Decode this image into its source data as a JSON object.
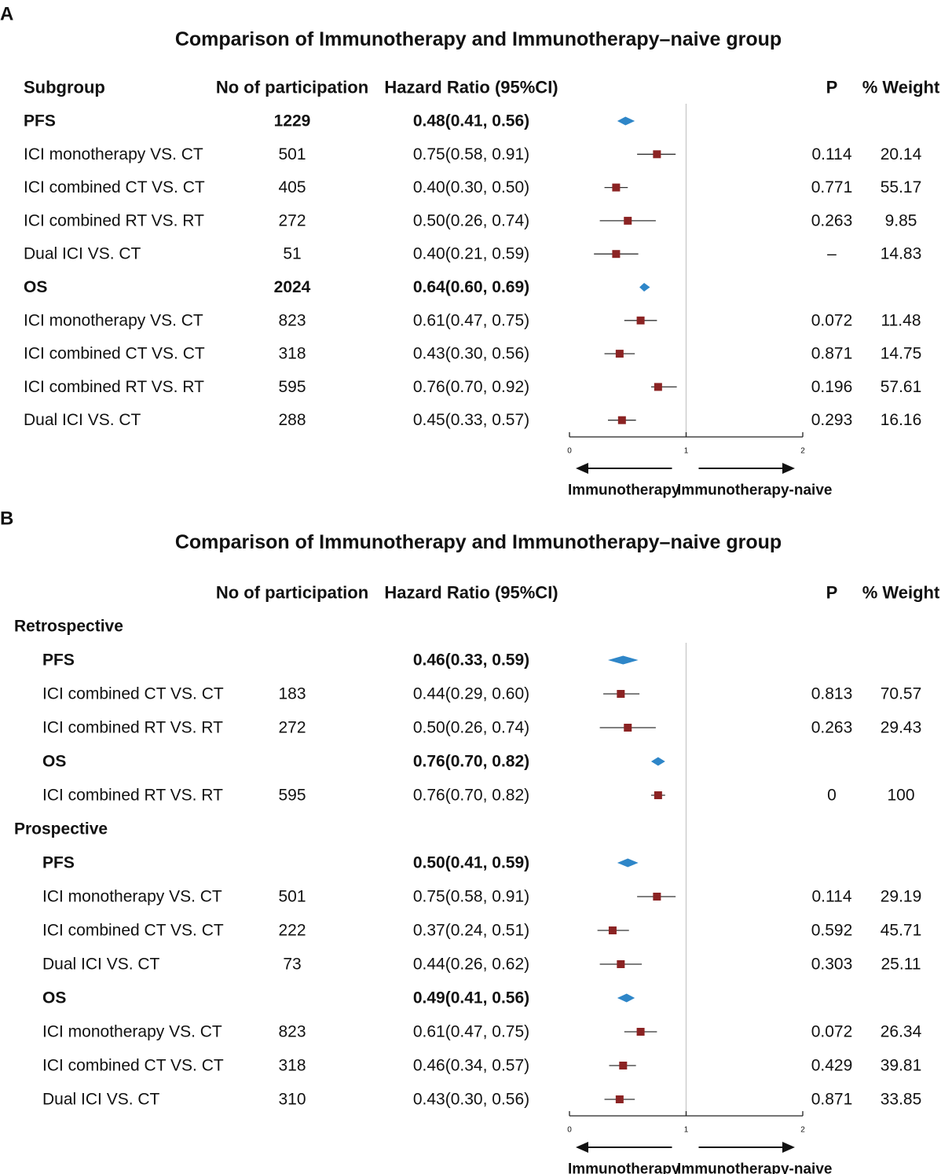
{
  "chart_data": [
    {
      "type": "forest",
      "panel_label": "A",
      "title": "Comparison of Immunotherapy and Immunotherapy–naive group",
      "columns": {
        "subgroup": "Subgroup",
        "n": "No of participation",
        "hr": "Hazard Ratio (95%CI)",
        "p": "P",
        "weight": "% Weight"
      },
      "xaxis": {
        "range": [
          0,
          2
        ],
        "ticks": [
          "0",
          "1",
          "2"
        ],
        "reference": 1
      },
      "direction_labels": {
        "left": "Immunotherapy",
        "right": "Immunotherapy-naive"
      },
      "rows": [
        {
          "kind": "summary",
          "indent": 0,
          "label": "PFS",
          "n": "1229",
          "hr_text": "0.48(0.41, 0.56)",
          "est": 0.48,
          "lo": 0.41,
          "hi": 0.56,
          "p": "",
          "weight": ""
        },
        {
          "kind": "study",
          "indent": 0,
          "label": "ICI monotherapy VS. CT",
          "n": "501",
          "hr_text": "0.75(0.58, 0.91)",
          "est": 0.75,
          "lo": 0.58,
          "hi": 0.91,
          "p": "0.114",
          "weight": "20.14"
        },
        {
          "kind": "study",
          "indent": 0,
          "label": "ICI combined CT VS. CT",
          "n": "405",
          "hr_text": "0.40(0.30, 0.50)",
          "est": 0.4,
          "lo": 0.3,
          "hi": 0.5,
          "p": "0.771",
          "weight": "55.17"
        },
        {
          "kind": "study",
          "indent": 0,
          "label": "ICI combined RT VS. RT",
          "n": "272",
          "hr_text": "0.50(0.26, 0.74)",
          "est": 0.5,
          "lo": 0.26,
          "hi": 0.74,
          "p": "0.263",
          "weight": "9.85"
        },
        {
          "kind": "study",
          "indent": 0,
          "label": "Dual ICI VS. CT",
          "n": "51",
          "hr_text": "0.40(0.21, 0.59)",
          "est": 0.4,
          "lo": 0.21,
          "hi": 0.59,
          "p": "–",
          "weight": "14.83"
        },
        {
          "kind": "summary",
          "indent": 0,
          "label": "OS",
          "n": "2024",
          "hr_text": "0.64(0.60, 0.69)",
          "est": 0.64,
          "lo": 0.6,
          "hi": 0.69,
          "p": "",
          "weight": ""
        },
        {
          "kind": "study",
          "indent": 0,
          "label": "ICI monotherapy VS. CT",
          "n": "823",
          "hr_text": "0.61(0.47, 0.75)",
          "est": 0.61,
          "lo": 0.47,
          "hi": 0.75,
          "p": "0.072",
          "weight": "11.48"
        },
        {
          "kind": "study",
          "indent": 0,
          "label": "ICI combined CT VS. CT",
          "n": "318",
          "hr_text": "0.43(0.30, 0.56)",
          "est": 0.43,
          "lo": 0.3,
          "hi": 0.56,
          "p": "0.871",
          "weight": "14.75"
        },
        {
          "kind": "study",
          "indent": 0,
          "label": "ICI combined RT VS. RT",
          "n": "595",
          "hr_text": "0.76(0.70, 0.92)",
          "est": 0.76,
          "lo": 0.7,
          "hi": 0.92,
          "p": "0.196",
          "weight": "57.61"
        },
        {
          "kind": "study",
          "indent": 0,
          "label": "Dual ICI VS. CT",
          "n": "288",
          "hr_text": "0.45(0.33, 0.57)",
          "est": 0.45,
          "lo": 0.33,
          "hi": 0.57,
          "p": "0.293",
          "weight": "16.16"
        }
      ]
    },
    {
      "type": "forest",
      "panel_label": "B",
      "title": "Comparison of Immunotherapy and Immunotherapy–naive group",
      "columns": {
        "subgroup": "",
        "n": "No of participation",
        "hr": "Hazard Ratio (95%CI)",
        "p": "P",
        "weight": "% Weight"
      },
      "xaxis": {
        "range": [
          0,
          2
        ],
        "ticks": [
          "0",
          "1",
          "2"
        ],
        "reference": 1
      },
      "direction_labels": {
        "left": "Immunotherapy",
        "right": "Immunotherapy-naive"
      },
      "rows": [
        {
          "kind": "group",
          "indent": 0,
          "label": "Retrospective"
        },
        {
          "kind": "summary",
          "indent": 1,
          "label": "PFS",
          "n": "",
          "hr_text": "0.46(0.33, 0.59)",
          "est": 0.46,
          "lo": 0.33,
          "hi": 0.59,
          "p": "",
          "weight": ""
        },
        {
          "kind": "study",
          "indent": 1,
          "label": "ICI combined CT VS. CT",
          "n": "183",
          "hr_text": "0.44(0.29, 0.60)",
          "est": 0.44,
          "lo": 0.29,
          "hi": 0.6,
          "p": "0.813",
          "weight": "70.57"
        },
        {
          "kind": "study",
          "indent": 1,
          "label": "ICI combined RT VS. RT",
          "n": "272",
          "hr_text": "0.50(0.26, 0.74)",
          "est": 0.5,
          "lo": 0.26,
          "hi": 0.74,
          "p": "0.263",
          "weight": "29.43"
        },
        {
          "kind": "summary",
          "indent": 1,
          "label": "OS",
          "n": "",
          "hr_text": "0.76(0.70, 0.82)",
          "est": 0.76,
          "lo": 0.7,
          "hi": 0.82,
          "p": "",
          "weight": ""
        },
        {
          "kind": "study",
          "indent": 1,
          "label": "ICI combined RT VS. RT",
          "n": "595",
          "hr_text": "0.76(0.70, 0.82)",
          "est": 0.76,
          "lo": 0.7,
          "hi": 0.82,
          "p": "0",
          "weight": "100"
        },
        {
          "kind": "group",
          "indent": 0,
          "label": "Prospective"
        },
        {
          "kind": "summary",
          "indent": 1,
          "label": "PFS",
          "n": "",
          "hr_text": "0.50(0.41, 0.59)",
          "est": 0.5,
          "lo": 0.41,
          "hi": 0.59,
          "p": "",
          "weight": ""
        },
        {
          "kind": "study",
          "indent": 1,
          "label": "ICI monotherapy VS. CT",
          "n": "501",
          "hr_text": "0.75(0.58, 0.91)",
          "est": 0.75,
          "lo": 0.58,
          "hi": 0.91,
          "p": "0.114",
          "weight": "29.19"
        },
        {
          "kind": "study",
          "indent": 1,
          "label": "ICI combined CT VS. CT",
          "n": "222",
          "hr_text": "0.37(0.24, 0.51)",
          "est": 0.37,
          "lo": 0.24,
          "hi": 0.51,
          "p": "0.592",
          "weight": "45.71"
        },
        {
          "kind": "study",
          "indent": 1,
          "label": "Dual ICI VS. CT",
          "n": "73",
          "hr_text": "0.44(0.26, 0.62)",
          "est": 0.44,
          "lo": 0.26,
          "hi": 0.62,
          "p": "0.303",
          "weight": "25.11"
        },
        {
          "kind": "summary",
          "indent": 1,
          "label": "OS",
          "n": "",
          "hr_text": "0.49(0.41, 0.56)",
          "est": 0.49,
          "lo": 0.41,
          "hi": 0.56,
          "p": "",
          "weight": ""
        },
        {
          "kind": "study",
          "indent": 1,
          "label": "ICI monotherapy VS. CT",
          "n": "823",
          "hr_text": "0.61(0.47, 0.75)",
          "est": 0.61,
          "lo": 0.47,
          "hi": 0.75,
          "p": "0.072",
          "weight": "26.34"
        },
        {
          "kind": "study",
          "indent": 1,
          "label": "ICI combined CT VS. CT",
          "n": "318",
          "hr_text": "0.46(0.34, 0.57)",
          "est": 0.46,
          "lo": 0.34,
          "hi": 0.57,
          "p": "0.429",
          "weight": "39.81"
        },
        {
          "kind": "study",
          "indent": 1,
          "label": "Dual ICI VS. CT",
          "n": "310",
          "hr_text": "0.43(0.30, 0.56)",
          "est": 0.43,
          "lo": 0.3,
          "hi": 0.56,
          "p": "0.871",
          "weight": "33.85"
        }
      ]
    }
  ],
  "colors": {
    "text": "#111111",
    "summary_diamond": "#2e86c8",
    "study_square": "#8b2323",
    "ci_line": "#333333",
    "reference_line": "#c8c8c8",
    "axis": "#222222"
  }
}
